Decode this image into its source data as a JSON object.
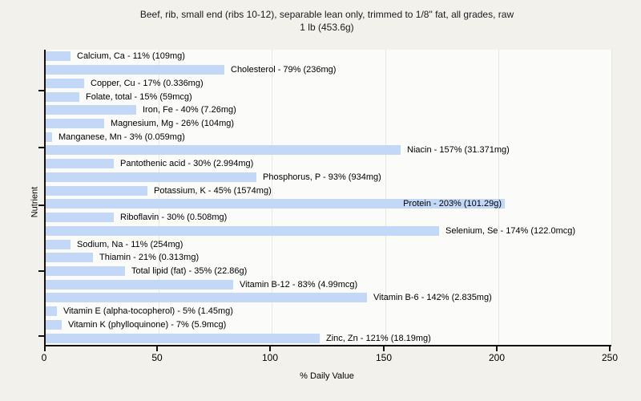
{
  "chart_data": {
    "type": "bar",
    "orientation": "horizontal",
    "title_line1": "Beef, rib, small end (ribs 10-12), separable lean only, trimmed to 1/8\" fat, all grades, raw",
    "title_line2": "1 lb (453.6g)",
    "xlabel": "% Daily Value",
    "ylabel": "Nutrient",
    "xlim": [
      0,
      250
    ],
    "xticks": [
      0,
      50,
      100,
      150,
      200,
      250
    ],
    "grid": "vertical",
    "legend": "none",
    "bar_color": "#c3d8f6",
    "items": [
      {
        "nutrient": "Calcium, Ca",
        "percent": 11,
        "amount": "109mg",
        "label": "Calcium, Ca - 11% (109mg)"
      },
      {
        "nutrient": "Cholesterol",
        "percent": 79,
        "amount": "236mg",
        "label": "Cholesterol - 79% (236mg)"
      },
      {
        "nutrient": "Copper, Cu",
        "percent": 17,
        "amount": "0.336mg",
        "label": "Copper, Cu - 17% (0.336mg)"
      },
      {
        "nutrient": "Folate, total",
        "percent": 15,
        "amount": "59mcg",
        "label": "Folate, total - 15% (59mcg)"
      },
      {
        "nutrient": "Iron, Fe",
        "percent": 40,
        "amount": "7.26mg",
        "label": "Iron, Fe - 40% (7.26mg)"
      },
      {
        "nutrient": "Magnesium, Mg",
        "percent": 26,
        "amount": "104mg",
        "label": "Magnesium, Mg - 26% (104mg)"
      },
      {
        "nutrient": "Manganese, Mn",
        "percent": 3,
        "amount": "0.059mg",
        "label": "Manganese, Mn - 3% (0.059mg)"
      },
      {
        "nutrient": "Niacin",
        "percent": 157,
        "amount": "31.371mg",
        "label": "Niacin - 157% (31.371mg)"
      },
      {
        "nutrient": "Pantothenic acid",
        "percent": 30,
        "amount": "2.994mg",
        "label": "Pantothenic acid - 30% (2.994mg)"
      },
      {
        "nutrient": "Phosphorus, P",
        "percent": 93,
        "amount": "934mg",
        "label": "Phosphorus, P - 93% (934mg)"
      },
      {
        "nutrient": "Potassium, K",
        "percent": 45,
        "amount": "1574mg",
        "label": "Potassium, K - 45% (1574mg)"
      },
      {
        "nutrient": "Protein",
        "percent": 203,
        "amount": "101.29g",
        "label": "Protein - 203% (101.29g)",
        "label_inside": true
      },
      {
        "nutrient": "Riboflavin",
        "percent": 30,
        "amount": "0.508mg",
        "label": "Riboflavin - 30% (0.508mg)"
      },
      {
        "nutrient": "Selenium, Se",
        "percent": 174,
        "amount": "122.0mcg",
        "label": "Selenium, Se - 174% (122.0mcg)"
      },
      {
        "nutrient": "Sodium, Na",
        "percent": 11,
        "amount": "254mg",
        "label": "Sodium, Na - 11% (254mg)"
      },
      {
        "nutrient": "Thiamin",
        "percent": 21,
        "amount": "0.313mg",
        "label": "Thiamin - 21% (0.313mg)"
      },
      {
        "nutrient": "Total lipid (fat)",
        "percent": 35,
        "amount": "22.86g",
        "label": "Total lipid (fat) - 35% (22.86g)"
      },
      {
        "nutrient": "Vitamin B-12",
        "percent": 83,
        "amount": "4.99mcg",
        "label": "Vitamin B-12 - 83% (4.99mcg)"
      },
      {
        "nutrient": "Vitamin B-6",
        "percent": 142,
        "amount": "2.835mg",
        "label": "Vitamin B-6 - 142% (2.835mg)"
      },
      {
        "nutrient": "Vitamin E (alpha-tocopherol)",
        "percent": 5,
        "amount": "1.45mg",
        "label": "Vitamin E (alpha-tocopherol) - 5% (1.45mg)"
      },
      {
        "nutrient": "Vitamin K (phylloquinone)",
        "percent": 7,
        "amount": "5.9mcg",
        "label": "Vitamin K (phylloquinone) - 7% (5.9mcg)"
      },
      {
        "nutrient": "Zinc, Zn",
        "percent": 121,
        "amount": "18.19mg",
        "label": "Zinc, Zn - 121% (18.19mg)"
      }
    ]
  }
}
